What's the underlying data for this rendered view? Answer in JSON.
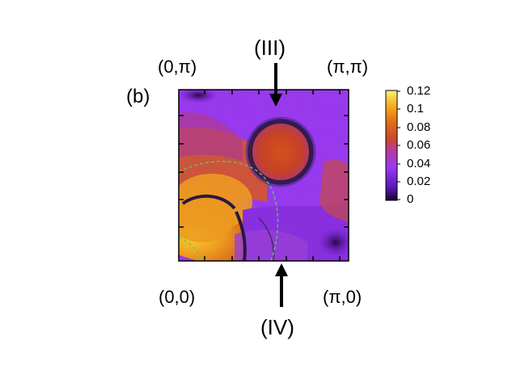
{
  "chart_data": {
    "type": "heatmap",
    "panel_label": "(b)",
    "corner_labels": {
      "top_left": "(0,π)",
      "top_right": "(π,π)",
      "bottom_left": "(0,0)",
      "bottom_right": "(π,0)"
    },
    "arrow_labels": {
      "top": "(III)",
      "bottom": "(IV)"
    },
    "colorbar": {
      "min": 0,
      "max": 0.12,
      "ticks": [
        0.12,
        0.1,
        0.08,
        0.06,
        0.04,
        0.02,
        0
      ],
      "tick_labels": [
        "0.12",
        "0.1",
        "0.08",
        "0.06",
        "0.04",
        "0.02",
        "0"
      ],
      "colors": [
        "#1a0030",
        "#6a1ed0",
        "#9b3cf0",
        "#c03a90",
        "#d8501c",
        "#ee8818",
        "#ffd820",
        "#fff080"
      ]
    },
    "features": {
      "ring_center": [
        0.6,
        0.79
      ],
      "ring_radius": 0.18,
      "dashed_contour_color": "#5fd05f"
    }
  }
}
